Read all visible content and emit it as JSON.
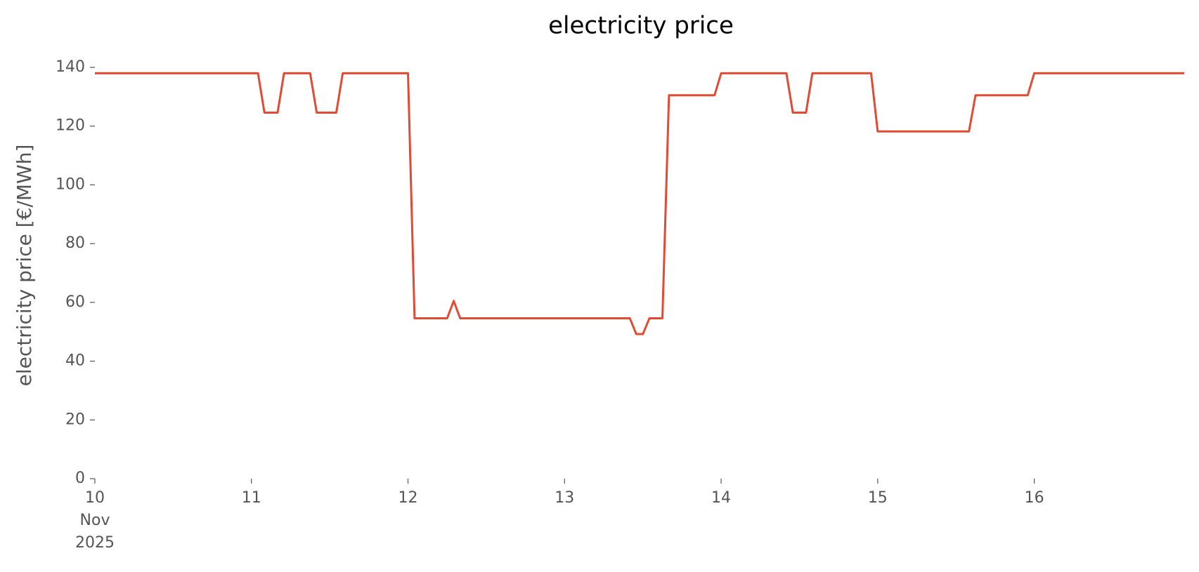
{
  "chart_data": {
    "type": "line",
    "title": "electricity price",
    "ylabel": "electricity price [€/MWh]",
    "x": [
      10,
      11.042,
      11.083,
      11.167,
      11.208,
      11.375,
      11.417,
      11.542,
      11.583,
      12,
      12.042,
      12.25,
      12.292,
      12.333,
      13.417,
      13.458,
      13.5,
      13.542,
      13.625,
      13.667,
      13.958,
      14,
      14.417,
      14.458,
      14.542,
      14.583,
      14.958,
      15,
      15.583,
      15.625,
      15.958,
      16,
      16.958
    ],
    "series": [
      {
        "name": "electricity price",
        "color": "#e24a33",
        "values": [
          138,
          138,
          124.6,
          124.6,
          138,
          138,
          124.6,
          124.6,
          138,
          138,
          54.6,
          54.6,
          60.5,
          54.6,
          54.6,
          49.2,
          49.2,
          54.6,
          54.6,
          130.5,
          130.5,
          138,
          138,
          124.6,
          124.6,
          138,
          138,
          118.2,
          118.2,
          130.5,
          130.5,
          138,
          138
        ]
      }
    ],
    "xlim": [
      10,
      16.958
    ],
    "xticks": [
      {
        "value": 10,
        "label": "10\nNov\n2025"
      },
      11,
      12,
      13,
      14,
      15,
      16
    ],
    "ylim": [
      0,
      140
    ],
    "yticks": [
      0,
      20,
      40,
      60,
      80,
      100,
      120,
      140
    ],
    "grid": false
  }
}
